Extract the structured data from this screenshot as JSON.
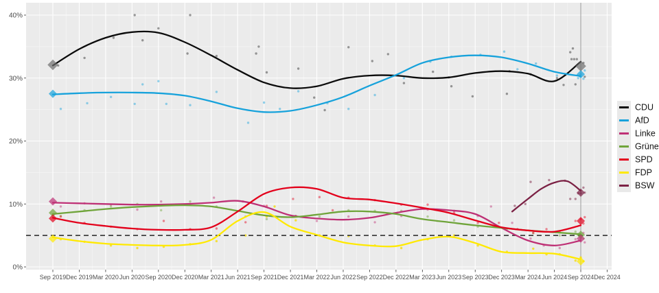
{
  "page": {
    "background": "#FFFFFF"
  },
  "chart_data": {
    "type": "line",
    "title": "",
    "xlabel": "",
    "ylabel": "",
    "x_axis_unit": "quarter index, 0 = Sep 2019, 1 step = 3 months",
    "x_tick_labels": [
      "Sep 2019",
      "Dec 2019",
      "Mar 2020",
      "Jun 2020",
      "Sep 2020",
      "Dec 2020",
      "Mar 2021",
      "Jun 2021",
      "Sep 2021",
      "Dec 2021",
      "Mar 2022",
      "Jun 2022",
      "Sep 2022",
      "Dec 2022",
      "Mar 2023",
      "Jun 2023",
      "Sep 2023",
      "Dec 2023",
      "Mar 2024",
      "Jun 2024",
      "Sep 2024",
      "Dec 2024"
    ],
    "y_tick_labels": [
      "0%",
      "10%",
      "20%",
      "30%",
      "40%"
    ],
    "y_tick_values": [
      0,
      10,
      20,
      30,
      40
    ],
    "ylim": [
      0,
      42.4
    ],
    "grid": true,
    "panel_background": "#EBEBEB",
    "gridline_color": "#FFFFFF",
    "axis_text_color": "#4D4D4D",
    "threshold_line": {
      "value": 5,
      "style": "dashed",
      "color": "#3F3F3F"
    },
    "event_line": {
      "x_index": 20,
      "color": "#9A9A9A"
    },
    "legend": {
      "position": "right",
      "entries": [
        {
          "label": "CDU",
          "color": "#0B0B0B",
          "marker_color": "#6E6E6E"
        },
        {
          "label": "AfD",
          "color": "#17A2DB",
          "marker_color": "#17A2DB"
        },
        {
          "label": "Linke",
          "color": "#BE3075",
          "marker_color": "#BE3075"
        },
        {
          "label": "Grüne",
          "color": "#6FA43A",
          "marker_color": "#6FA43A"
        },
        {
          "label": "SPD",
          "color": "#E3001B",
          "marker_color": "#E3001B"
        },
        {
          "label": "FDP",
          "color": "#FFE900",
          "marker_color": "#FFE900"
        },
        {
          "label": "BSW",
          "color": "#7B2144",
          "marker_color": "#7B2144"
        }
      ]
    },
    "series": [
      {
        "name": "CDU",
        "color": "#0B0B0B",
        "values": [
          32.0,
          34.6,
          36.4,
          37.3,
          37.2,
          35.7,
          33.6,
          31.3,
          29.3,
          28.4,
          28.7,
          29.9,
          30.4,
          30.4,
          30.0,
          30.1,
          30.8,
          31.1,
          30.7,
          29.5,
          32.6
        ]
      },
      {
        "name": "AfD",
        "color": "#17A2DB",
        "values": [
          27.4,
          27.6,
          27.7,
          27.7,
          27.6,
          27.2,
          26.3,
          25.2,
          24.6,
          24.8,
          25.7,
          27.0,
          28.8,
          30.5,
          32.4,
          33.3,
          33.6,
          33.3,
          32.3,
          31.0,
          30.3
        ]
      },
      {
        "name": "Linke",
        "color": "#BE3075",
        "values": [
          10.2,
          10.1,
          10.0,
          9.9,
          9.9,
          10.0,
          10.2,
          10.5,
          9.6,
          8.2,
          7.7,
          7.5,
          7.8,
          8.6,
          9.2,
          9.0,
          8.4,
          6.2,
          4.2,
          3.4,
          4.2
        ]
      },
      {
        "name": "Grüne",
        "color": "#6FA43A",
        "values": [
          8.4,
          8.8,
          9.2,
          9.5,
          9.7,
          9.8,
          9.6,
          8.9,
          8.2,
          7.9,
          8.3,
          8.8,
          8.8,
          8.4,
          7.6,
          7.1,
          6.6,
          6.2,
          5.8,
          5.5,
          5.2
        ]
      },
      {
        "name": "SPD",
        "color": "#E3001B",
        "values": [
          7.8,
          7.0,
          6.5,
          6.1,
          5.9,
          5.9,
          6.3,
          8.8,
          11.6,
          12.6,
          12.4,
          11.0,
          10.7,
          10.1,
          9.4,
          8.6,
          7.4,
          6.3,
          5.8,
          5.6,
          6.6
        ]
      },
      {
        "name": "FDP",
        "color": "#FFE900",
        "values": [
          4.7,
          4.1,
          3.7,
          3.5,
          3.4,
          3.5,
          4.3,
          7.3,
          8.7,
          6.4,
          5.1,
          3.9,
          3.4,
          3.3,
          4.3,
          4.8,
          3.8,
          2.4,
          2.2,
          2.1,
          1.2
        ]
      },
      {
        "name": "BSW",
        "color": "#7B2144",
        "x": [
          17.4,
          18,
          18.5,
          19,
          19.5,
          20
        ],
        "values": [
          8.8,
          10.8,
          12.4,
          13.4,
          13.6,
          12.1
        ]
      }
    ],
    "poll_points": [
      {
        "party": "CDU",
        "color": "#3C3C3C",
        "opacity": 0.5,
        "points": [
          [
            0.2,
            32
          ],
          [
            1.2,
            33.2
          ],
          [
            2.3,
            36.4
          ],
          [
            3.1,
            40
          ],
          [
            3.4,
            36
          ],
          [
            4.0,
            37.9
          ],
          [
            5.2,
            40
          ],
          [
            5.1,
            33.9
          ],
          [
            6.2,
            33.5
          ],
          [
            7.7,
            33.9
          ],
          [
            7.8,
            35
          ],
          [
            8.1,
            30.9
          ],
          [
            9.3,
            31.5
          ],
          [
            9.9,
            26.9
          ],
          [
            10.3,
            24.9
          ],
          [
            11.2,
            34.9
          ],
          [
            12.1,
            32.7
          ],
          [
            12.7,
            33.8
          ],
          [
            13.3,
            29.2
          ],
          [
            14.4,
            31
          ],
          [
            15.0,
            30.1
          ],
          [
            15.1,
            28.7
          ],
          [
            15.9,
            27.1
          ],
          [
            17.2,
            27.5
          ],
          [
            17.3,
            31.1
          ],
          [
            18.1,
            30.6
          ],
          [
            19.1,
            30.0
          ],
          [
            19.35,
            28.9
          ],
          [
            19.6,
            34.1
          ],
          [
            19.65,
            33.0
          ],
          [
            19.7,
            34.7
          ],
          [
            19.75,
            33.0
          ],
          [
            19.8,
            29.0
          ],
          [
            19.85,
            33.0
          ],
          [
            20.1,
            32.4
          ],
          [
            20.15,
            30.2
          ]
        ]
      },
      {
        "party": "AfD",
        "color": "#17A2DB",
        "opacity": 0.45,
        "points": [
          [
            0.3,
            25.1
          ],
          [
            1.3,
            26
          ],
          [
            2.2,
            27
          ],
          [
            3.1,
            25.9
          ],
          [
            3.4,
            29
          ],
          [
            4.0,
            29.5
          ],
          [
            4.3,
            25.9
          ],
          [
            5.2,
            25.7
          ],
          [
            6.2,
            27.8
          ],
          [
            7.4,
            22.9
          ],
          [
            8.0,
            26.1
          ],
          [
            8.6,
            25.1
          ],
          [
            9.3,
            27.9
          ],
          [
            10.4,
            26
          ],
          [
            11.2,
            25.1
          ],
          [
            12.2,
            27.3
          ],
          [
            13.3,
            30
          ],
          [
            14.3,
            32.6
          ],
          [
            15.1,
            33.4
          ],
          [
            16.2,
            33.7
          ],
          [
            17.1,
            34.2
          ],
          [
            17.6,
            31.4
          ],
          [
            18.3,
            32.3
          ],
          [
            19.1,
            30.4
          ],
          [
            19.9,
            30
          ],
          [
            20.0,
            30.6
          ],
          [
            20.1,
            29.9
          ],
          [
            20.15,
            31.2
          ]
        ]
      },
      {
        "party": "Linke",
        "color": "#BE3075",
        "opacity": 0.45,
        "points": [
          [
            0.3,
            9.6
          ],
          [
            1.2,
            10.1
          ],
          [
            2.2,
            9.9
          ],
          [
            3.2,
            9.1
          ],
          [
            4.1,
            10.4
          ],
          [
            5.2,
            10
          ],
          [
            6.1,
            11
          ],
          [
            7.2,
            10.4
          ],
          [
            8.0,
            9.7
          ],
          [
            9.2,
            8.1
          ],
          [
            10.0,
            7.3
          ],
          [
            11.2,
            8
          ],
          [
            12.2,
            7.1
          ],
          [
            13.2,
            8.1
          ],
          [
            14.2,
            9.1
          ],
          [
            15.2,
            8.9
          ],
          [
            16.1,
            8.1
          ],
          [
            16.6,
            9.6
          ],
          [
            17.4,
            7.0
          ],
          [
            18.1,
            4.5
          ],
          [
            18.6,
            3.4
          ],
          [
            19.2,
            3.0
          ],
          [
            19.8,
            4.4
          ],
          [
            20.0,
            4.5
          ],
          [
            20.1,
            5.4
          ],
          [
            20.15,
            3.9
          ]
        ]
      },
      {
        "party": "Grüne",
        "color": "#6FA43A",
        "opacity": 0.45,
        "points": [
          [
            0.3,
            8.1
          ],
          [
            1.2,
            9
          ],
          [
            2.2,
            9.6
          ],
          [
            3.2,
            10
          ],
          [
            4.1,
            9
          ],
          [
            5.2,
            10.4
          ],
          [
            6.2,
            9.6
          ],
          [
            7.3,
            8
          ],
          [
            8.1,
            7.6
          ],
          [
            9.2,
            8.1
          ],
          [
            10.1,
            8
          ],
          [
            11.2,
            9
          ],
          [
            12.2,
            8.9
          ],
          [
            13.2,
            8.9
          ],
          [
            14.2,
            8
          ],
          [
            15.2,
            7.4
          ],
          [
            16.1,
            6.4
          ],
          [
            17.2,
            6
          ],
          [
            18.2,
            5.4
          ],
          [
            19.2,
            5
          ],
          [
            19.8,
            5.6
          ],
          [
            20.0,
            5.1
          ],
          [
            20.1,
            4.5
          ]
        ]
      },
      {
        "party": "SPD",
        "color": "#E3001B",
        "opacity": 0.45,
        "points": [
          [
            0.3,
            8
          ],
          [
            1.2,
            7
          ],
          [
            2.2,
            6.4
          ],
          [
            3.2,
            6
          ],
          [
            4.2,
            7.3
          ],
          [
            5.2,
            6
          ],
          [
            6.2,
            6.1
          ],
          [
            7.3,
            7.1
          ],
          [
            8.1,
            9.7
          ],
          [
            9.1,
            10.8
          ],
          [
            10.1,
            11.1
          ],
          [
            10.6,
            9
          ],
          [
            11.2,
            11
          ],
          [
            12.2,
            10.6
          ],
          [
            13.2,
            9.9
          ],
          [
            14.2,
            9.9
          ],
          [
            15.2,
            8.6
          ],
          [
            16.1,
            7
          ],
          [
            16.9,
            7
          ],
          [
            17.6,
            6
          ],
          [
            18.2,
            5.4
          ],
          [
            18.7,
            6
          ],
          [
            19.2,
            5.5
          ],
          [
            19.8,
            7.3
          ],
          [
            20.0,
            7.6
          ],
          [
            20.1,
            6.9
          ],
          [
            20.15,
            7.9
          ]
        ]
      },
      {
        "party": "FDP",
        "color": "#F5DC00",
        "opacity": 0.75,
        "points": [
          [
            0.3,
            4.4
          ],
          [
            1.2,
            4
          ],
          [
            2.2,
            3.4
          ],
          [
            3.2,
            3
          ],
          [
            4.2,
            3.2
          ],
          [
            5.2,
            3.6
          ],
          [
            6.2,
            4.1
          ],
          [
            7.3,
            5
          ],
          [
            8.1,
            8
          ],
          [
            8.4,
            9.6
          ],
          [
            9.2,
            7.4
          ],
          [
            10.1,
            5
          ],
          [
            11.2,
            4.9
          ],
          [
            12.2,
            3.4
          ],
          [
            13.2,
            3
          ],
          [
            14.2,
            4.4
          ],
          [
            15.2,
            5
          ],
          [
            16.1,
            3.4
          ],
          [
            17.2,
            2.4
          ],
          [
            18.2,
            2.9
          ],
          [
            18.7,
            2
          ],
          [
            19.2,
            2
          ],
          [
            19.8,
            1
          ],
          [
            20.0,
            1.5
          ],
          [
            20.1,
            0.9
          ]
        ]
      },
      {
        "party": "BSW",
        "color": "#7B2144",
        "opacity": 0.5,
        "points": [
          [
            17.5,
            9.7
          ],
          [
            17.9,
            10.0
          ],
          [
            18.1,
            13.5
          ],
          [
            18.8,
            13.8
          ],
          [
            19.4,
            13.7
          ],
          [
            19.6,
            10.8
          ],
          [
            19.8,
            10.8
          ],
          [
            19.9,
            11.7
          ],
          [
            20.0,
            11.7
          ],
          [
            20.1,
            12.6
          ],
          [
            20.15,
            11.8
          ]
        ]
      }
    ],
    "election_results": [
      {
        "x_index": 0,
        "label": "Sep 2019",
        "results": [
          {
            "party": "CDU",
            "value": 32.1
          },
          {
            "party": "AfD",
            "value": 27.5
          },
          {
            "party": "Linke",
            "value": 10.4
          },
          {
            "party": "Grüne",
            "value": 8.6
          },
          {
            "party": "SPD",
            "value": 7.7
          },
          {
            "party": "FDP",
            "value": 4.5
          }
        ]
      },
      {
        "x_index": 20,
        "label": "Sep 2024",
        "results": [
          {
            "party": "CDU",
            "value": 31.9
          },
          {
            "party": "AfD",
            "value": 30.6
          },
          {
            "party": "BSW",
            "value": 11.8
          },
          {
            "party": "SPD",
            "value": 7.3
          },
          {
            "party": "Grüne",
            "value": 5.1
          },
          {
            "party": "Linke",
            "value": 4.5
          },
          {
            "party": "FDP",
            "value": 0.9
          }
        ]
      }
    ]
  }
}
